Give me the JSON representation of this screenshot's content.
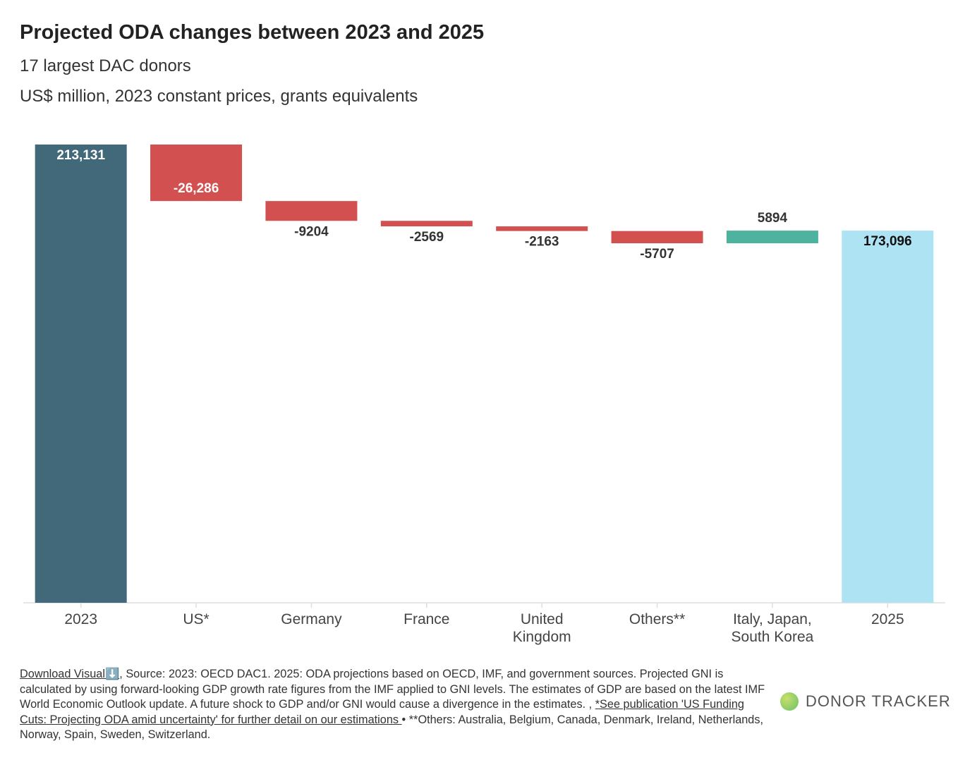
{
  "chart_data": {
    "type": "waterfall",
    "title": "Projected ODA changes between 2023 and 2025",
    "subtitle": "17 largest DAC donors",
    "subtitle2": "US$ million, 2023 constant prices, grants equivalents",
    "categories": [
      "2023",
      "US*",
      "Germany",
      "France",
      "United\nKingdom",
      "Others**",
      "Italy, Japan,\nSouth Korea",
      "2025"
    ],
    "values": [
      213131,
      -26286,
      -9204,
      -2569,
      -2163,
      -5707,
      5894,
      173096
    ],
    "value_labels": [
      "213,131",
      "-26,286",
      "-9204",
      "-2569",
      "-2163",
      "-5707",
      "5894",
      "173,096"
    ],
    "colors": [
      "#41697a",
      "#d35050",
      "#d35050",
      "#d35050",
      "#d35050",
      "#d35050",
      "#4db39e",
      "#aee3f4"
    ],
    "ylim": [
      0,
      213131
    ]
  },
  "footer": {
    "download": "Download Visual⬇️",
    "source": ", Source: 2023: OECD DAC1. 2025: ODA projections based on OECD, IMF, and government sources. Projected GNI is calculated by using forward-looking GDP growth rate figures from the IMF applied to GNI levels. The estimates of GDP are based on the latest IMF World Economic Outlook update. A future shock to GDP and/or GNI would cause a divergence in the estimates. , ",
    "link": "*See publication 'US Funding Cuts: Projecting ODA amid uncertainty' for further detail on our estimations ",
    "others": " • **Others: Australia, Belgium, Canada, Denmark, Ireland, Netherlands, Norway, Spain, Sweden, Switzerland.",
    "logo": "DONOR TRACKER"
  }
}
